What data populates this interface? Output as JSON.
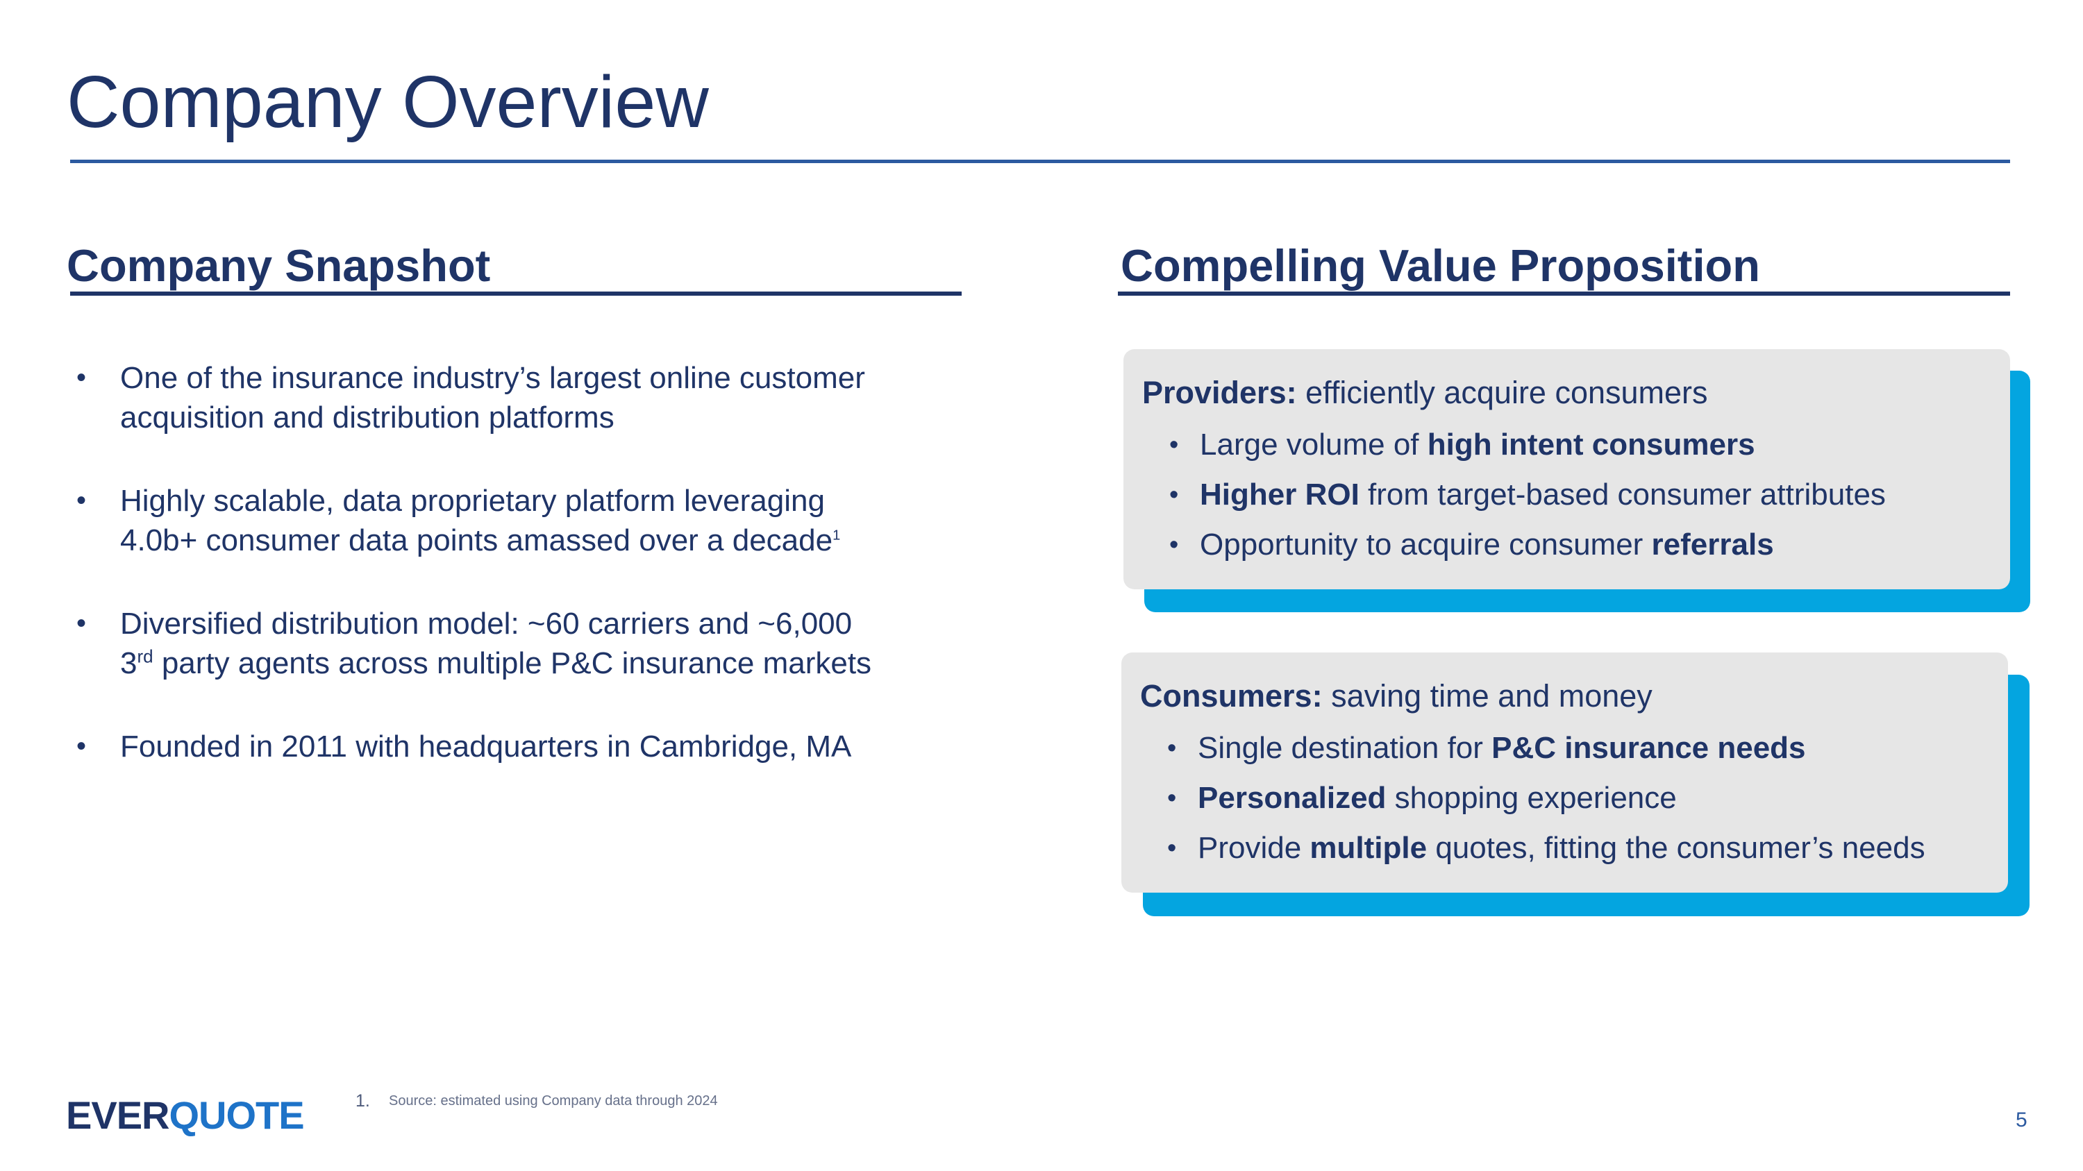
{
  "title": "Company Overview",
  "left": {
    "heading": "Company Snapshot",
    "bullets": [
      {
        "lines": [
          "One of the insurance industry’s largest online customer",
          "acquisition and distribution platforms"
        ]
      },
      {
        "line1": "Highly scalable, data proprietary platform leveraging",
        "line2": "4.0b+ consumer data points amassed over a decade",
        "sup": "1"
      },
      {
        "line1": "Diversified distribution model: ~60 carriers and ~6,000",
        "line2_pre": "3",
        "line2_sup": "rd",
        "line2_post": " party agents across multiple P&C insurance markets"
      },
      {
        "line1": "Founded in 2011 with headquarters in Cambridge, MA"
      }
    ]
  },
  "right": {
    "heading": "Compelling Value Proposition",
    "providers": {
      "label": "Providers:",
      "desc": " efficiently acquire consumers",
      "items": [
        {
          "pre": "Large volume of ",
          "bold": "high intent consumers",
          "post": ""
        },
        {
          "pre": "",
          "bold": "Higher ROI",
          "post": " from target-based consumer attributes"
        },
        {
          "pre": "Opportunity to acquire consumer ",
          "bold": "referrals",
          "post": ""
        }
      ]
    },
    "consumers": {
      "label": "Consumers:",
      "desc": " saving time and money",
      "items": [
        {
          "pre": "Single destination for ",
          "bold": "P&C insurance needs",
          "post": ""
        },
        {
          "pre": "",
          "bold": "Personalized",
          "post": " shopping experience"
        },
        {
          "pre": "Provide ",
          "bold": "multiple",
          "post": " quotes, fitting the consumer’s needs"
        }
      ]
    }
  },
  "footer": {
    "logo_part1": "EVER",
    "logo_part2": "QUOTE",
    "footnote_number": "1.",
    "footnote_text": "Source: estimated using Company data through 2024",
    "page_number": "5"
  },
  "bullet_char": "•",
  "colors": {
    "navy": "#1f3467",
    "title_rule": "#2c5aa0",
    "card_bg": "#e6e6e6",
    "card_shadow": "#04a5e0",
    "logo_quote": "#1e73c8"
  }
}
